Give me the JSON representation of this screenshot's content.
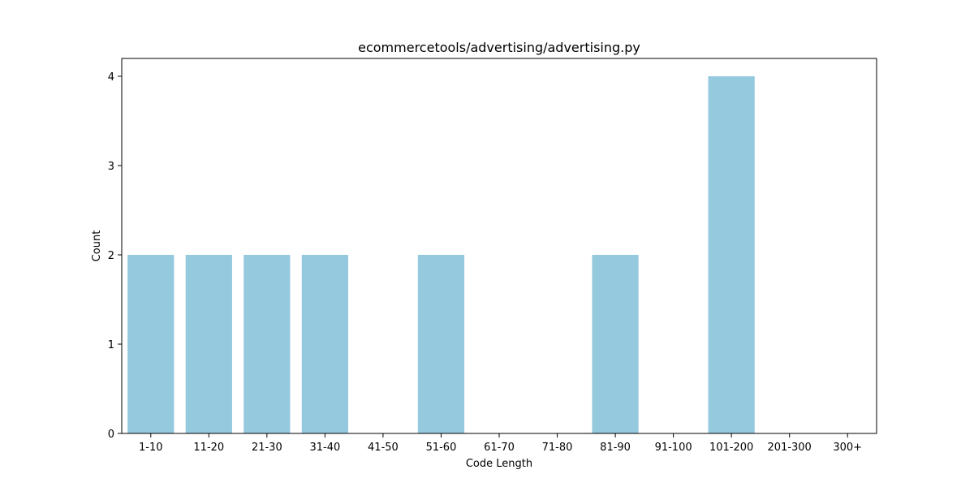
{
  "chart_data": {
    "type": "bar",
    "title": "ecommercetools/advertising/advertising.py",
    "xlabel": "Code Length",
    "ylabel": "Count",
    "categories": [
      "1-10",
      "11-20",
      "21-30",
      "31-40",
      "41-50",
      "51-60",
      "61-70",
      "71-80",
      "81-90",
      "91-100",
      "101-200",
      "201-300",
      "300+"
    ],
    "values": [
      2,
      2,
      2,
      2,
      0,
      2,
      0,
      0,
      2,
      0,
      4,
      0,
      0
    ],
    "ylim": [
      0,
      4.2
    ],
    "yticks": [
      0,
      1,
      2,
      3,
      4
    ],
    "bar_color": "#95c9de",
    "grid": false,
    "legend": "none"
  }
}
